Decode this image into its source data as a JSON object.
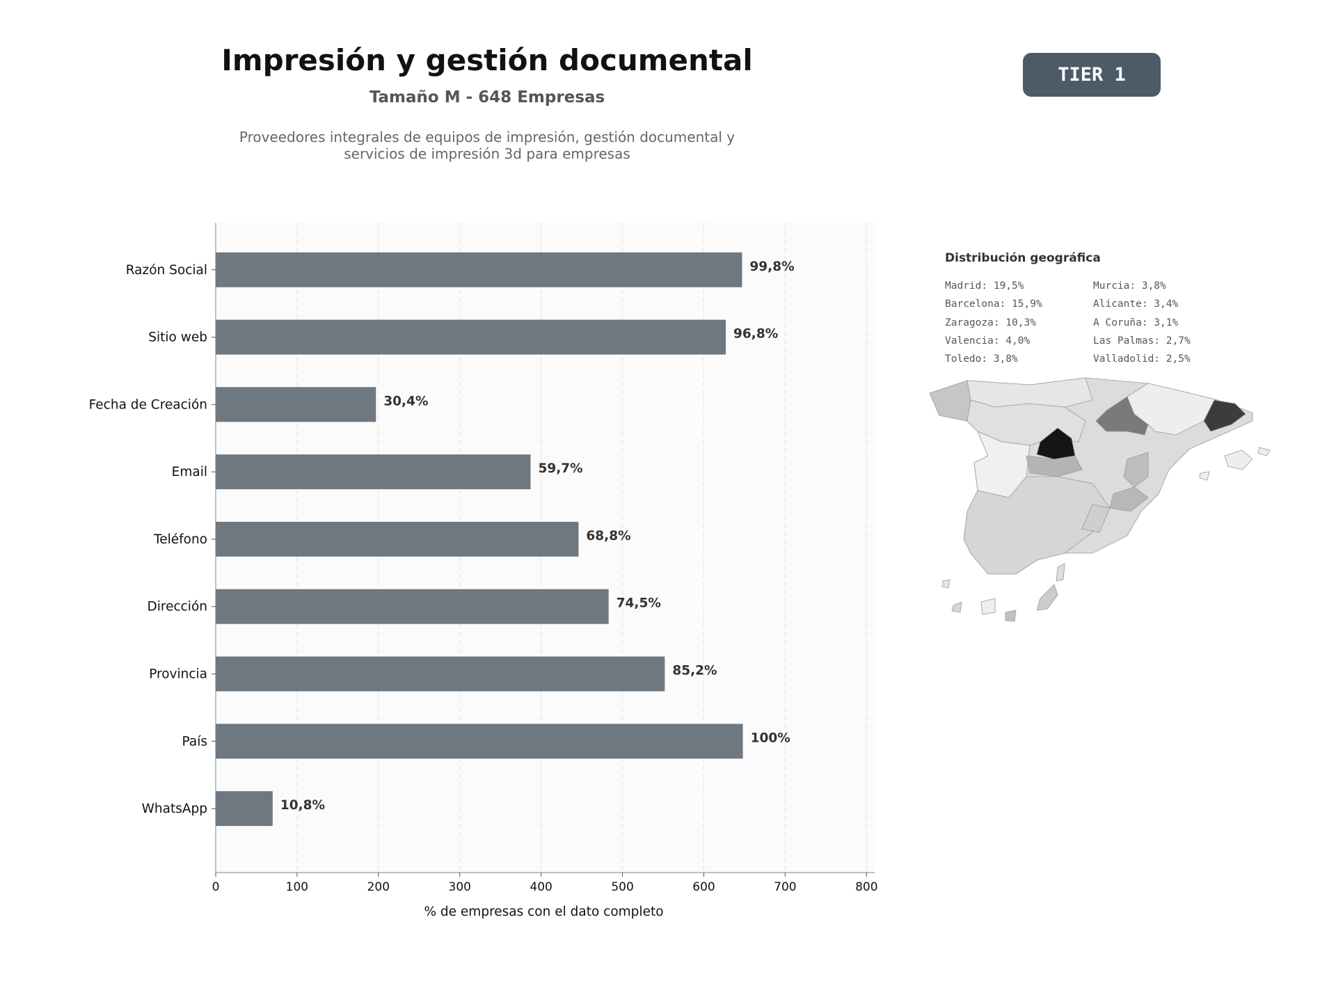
{
  "header": {
    "title": "Impresión y gestión documental",
    "subtitle": "Tamaño M - 648 Empresas",
    "description_line1": "Proveedores integrales de equipos de impresión, gestión documental y",
    "description_line2": "servicios de impresión 3d para empresas"
  },
  "badge": {
    "label": "TIER 1"
  },
  "chart_data": {
    "type": "bar",
    "orientation": "horizontal",
    "categories": [
      "Razón Social",
      "Sitio web",
      "Fecha de Creación",
      "Email",
      "Teléfono",
      "Dirección",
      "Provincia",
      "País",
      "WhatsApp"
    ],
    "values": [
      647,
      627,
      197,
      387,
      446,
      483,
      552,
      648,
      70
    ],
    "data_labels": [
      "99,8%",
      "96,8%",
      "30,4%",
      "59,7%",
      "68,8%",
      "74,5%",
      "85,2%",
      "100%",
      "10,8%"
    ],
    "xlabel": "% de empresas con el dato completo",
    "xticks": [
      0,
      100,
      200,
      300,
      400,
      500,
      600,
      700,
      800
    ],
    "xlim": [
      0,
      810
    ],
    "grid": "vertical dashed",
    "bar_color": "#6e7881"
  },
  "geo": {
    "title": "Distribución geográfica",
    "col1": [
      "Madrid: 19,5%",
      "Barcelona: 15,9%",
      "Zaragoza: 10,3%",
      "Valencia: 4,0%",
      "Toledo: 3,8%"
    ],
    "col2": [
      "Murcia: 3,8%",
      "Alicante: 3,4%",
      "A Coruña: 3,1%",
      "Las Palmas: 2,7%",
      "Valladolid: 2,5%"
    ]
  }
}
